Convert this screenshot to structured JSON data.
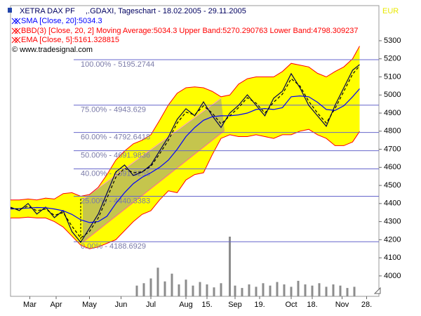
{
  "chart_data": {
    "type": "line",
    "title": "XETRA DAX PF",
    "subtitle": ",.GDAXI, Tageschart - 18.02.2005 - 29.11.2005",
    "source": "© www.tradesignal.com",
    "currency": "EUR",
    "xlim": [
      0,
      210
    ],
    "ylim": [
      3887,
      5494
    ],
    "xticks": [
      {
        "value": 11,
        "label": "Mar"
      },
      {
        "value": 26,
        "label": "Apr"
      },
      {
        "value": 45,
        "label": "May"
      },
      {
        "value": 63,
        "label": "Jun"
      },
      {
        "value": 80,
        "label": "Jul"
      },
      {
        "value": 100,
        "label": "Aug"
      },
      {
        "value": 112,
        "label": "15."
      },
      {
        "value": 128,
        "label": "Sep"
      },
      {
        "value": 142,
        "label": "19."
      },
      {
        "value": 160,
        "label": "Oct"
      },
      {
        "value": 172,
        "label": "18."
      },
      {
        "value": 189,
        "label": "Nov"
      },
      {
        "value": 203,
        "label": "28."
      }
    ],
    "yticks": [
      4000,
      4100,
      4200,
      4300,
      4400,
      4500,
      4600,
      4700,
      4800,
      4900,
      5000,
      5100,
      5200,
      5300
    ],
    "x": [
      0,
      5,
      10,
      15,
      20,
      25,
      30,
      35,
      40,
      45,
      50,
      55,
      60,
      65,
      70,
      75,
      80,
      85,
      90,
      95,
      100,
      105,
      110,
      115,
      120,
      125,
      130,
      135,
      140,
      145,
      150,
      155,
      160,
      165,
      170,
      175,
      180,
      185,
      190,
      195,
      199
    ],
    "series": [
      {
        "color": "#000050",
        "values": [
          4380,
          4361,
          4400,
          4342,
          4380,
          4322,
          4361,
          4245,
          4186,
          4264,
          4342,
          4458,
          4574,
          4613,
          4555,
          4574,
          4613,
          4691,
          4768,
          4865,
          4924,
          4885,
          4962,
          4885,
          4820,
          4900,
          4943,
          5001,
          4943,
          4885,
          4982,
          5021,
          5118,
          5040,
          4943,
          4885,
          4827,
          4943,
          5040,
          5137,
          5168
        ]
      },
      {
        "name": "SMA [Close, 20]:5034.3",
        "color": "#0000ff",
        "values": [
          4370,
          4372,
          4375,
          4378,
          4377,
          4370,
          4360,
          4340,
          4310,
          4295,
          4300,
          4330,
          4400,
          4460,
          4510,
          4545,
          4570,
          4600,
          4640,
          4700,
          4770,
          4820,
          4860,
          4880,
          4885,
          4885,
          4890,
          4900,
          4920,
          4925,
          4920,
          4930,
          4990,
          4995,
          4990,
          4960,
          4920,
          4915,
          4940,
          4990,
          5034.3
        ]
      },
      {
        "name": "EMA [Close, 5]:5161.328815",
        "color": "#000000",
        "dashed": true,
        "values": [
          4375,
          4368,
          4385,
          4360,
          4370,
          4335,
          4350,
          4275,
          4210,
          4245,
          4320,
          4430,
          4545,
          4595,
          4570,
          4575,
          4605,
          4675,
          4750,
          4845,
          4905,
          4890,
          4940,
          4900,
          4840,
          4885,
          4930,
          4985,
          4955,
          4900,
          4960,
          5005,
          5090,
          5050,
          4965,
          4900,
          4845,
          4925,
          5020,
          5115,
          5161.328815
        ]
      }
    ],
    "bands": {
      "name": "BBD(3) [Close, 20, 2] Moving Average:5034.3 Upper Band:5270.290763 Lower Band:4798.309237",
      "color": "#ff0000",
      "fill": "#ffff00",
      "upper": [
        4420,
        4420,
        4425,
        4420,
        4430,
        4425,
        4455,
        4460,
        4440,
        4450,
        4490,
        4560,
        4640,
        4690,
        4730,
        4750,
        4780,
        4860,
        4945,
        5010,
        5040,
        5045,
        5040,
        5020,
        4990,
        5000,
        5060,
        5090,
        5100,
        5100,
        5100,
        5130,
        5175,
        5165,
        5155,
        5120,
        5100,
        5130,
        5155,
        5200,
        5270.290763
      ],
      "lower": [
        4320,
        4320,
        4325,
        4320,
        4320,
        4300,
        4270,
        4220,
        4170,
        4150,
        4160,
        4180,
        4200,
        4250,
        4300,
        4340,
        4360,
        4420,
        4470,
        4460,
        4530,
        4560,
        4570,
        4670,
        4760,
        4780,
        4770,
        4770,
        4780,
        4770,
        4760,
        4780,
        4780,
        4800,
        4810,
        4780,
        4760,
        4720,
        4720,
        4740,
        4798.309237
      ]
    },
    "fib_levels": {
      "color": "#6666cc",
      "levels": [
        {
          "label": "100.00% - 5195.2744",
          "value": 5195.2744
        },
        {
          "label": "75.00% - 4943.629",
          "value": 4943.629
        },
        {
          "label": "60.00% - 4792.6418",
          "value": 4792.6418
        },
        {
          "label": "50.00% - 4691.9836",
          "value": 4691.9836
        },
        {
          "label": "40.00% - 4591.3255",
          "value": 4591.3255
        },
        {
          "label": "25.00% - 4440.3383",
          "value": 4440.3383
        },
        {
          "label": "0.00% - 4188.6929",
          "value": 4188.6929
        }
      ]
    },
    "volume": {
      "color": "#8c8c8c",
      "ylim": [
        0,
        100
      ],
      "x": [
        72,
        76,
        80,
        84,
        88,
        92,
        96,
        100,
        104,
        108,
        112,
        116,
        120,
        125,
        128,
        132,
        136,
        140,
        144,
        148,
        152,
        156,
        160,
        164,
        168,
        172,
        176,
        180,
        184,
        188,
        192,
        196
      ],
      "values": [
        18,
        22,
        30,
        48,
        25,
        38,
        20,
        28,
        18,
        24,
        20,
        15,
        22,
        100,
        18,
        14,
        20,
        16,
        22,
        18,
        24,
        20,
        16,
        26,
        20,
        18,
        22,
        16,
        20,
        18,
        14,
        16
      ]
    }
  }
}
